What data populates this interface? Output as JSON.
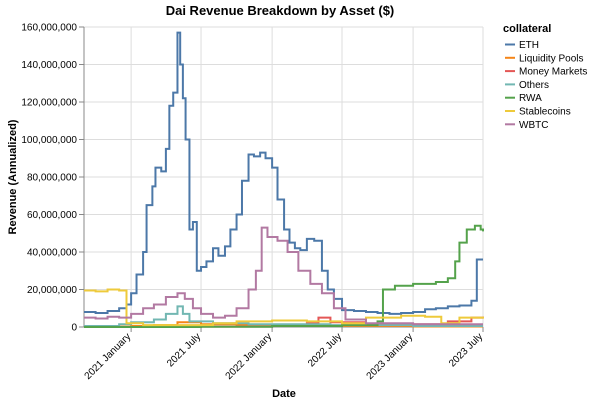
{
  "chart_data": {
    "type": "line",
    "title": "Dai Revenue Breakdown by Asset ($)",
    "xlabel": "Date",
    "ylabel": "Revenue (Annualized)",
    "ylim": [
      0,
      160000000
    ],
    "xlim": [
      "2020-09-01",
      "2023-07-01"
    ],
    "grid": true,
    "interpolation": "step",
    "legend": {
      "title": "collateral",
      "placement": "right"
    },
    "x_ticks": [
      {
        "date": "2021-01-01",
        "label": "2021 January"
      },
      {
        "date": "2021-07-01",
        "label": "2021 July"
      },
      {
        "date": "2022-01-01",
        "label": "2022 January"
      },
      {
        "date": "2022-07-01",
        "label": "2022 July"
      },
      {
        "date": "2023-01-01",
        "label": "2023 January"
      },
      {
        "date": "2023-07-01",
        "label": "2023 July"
      }
    ],
    "y_ticks": [
      {
        "value": 0,
        "label": "0"
      },
      {
        "value": 20000000,
        "label": "20,000,000"
      },
      {
        "value": 40000000,
        "label": "40,000,000"
      },
      {
        "value": 60000000,
        "label": "60,000,000"
      },
      {
        "value": 80000000,
        "label": "80,000,000"
      },
      {
        "value": 100000000,
        "label": "100,000,000"
      },
      {
        "value": 120000000,
        "label": "120,000,000"
      },
      {
        "value": 140000000,
        "label": "140,000,000"
      },
      {
        "value": 160000000,
        "label": "160,000,000"
      }
    ],
    "series": [
      {
        "name": "ETH",
        "color": "#4c78a8",
        "points": [
          [
            "2020-09-01",
            8000000
          ],
          [
            "2020-10-01",
            7500000
          ],
          [
            "2020-11-01",
            8500000
          ],
          [
            "2020-12-01",
            10000000
          ],
          [
            "2020-12-20",
            12000000
          ],
          [
            "2021-01-01",
            18000000
          ],
          [
            "2021-01-15",
            28000000
          ],
          [
            "2021-02-01",
            40000000
          ],
          [
            "2021-02-10",
            65000000
          ],
          [
            "2021-02-25",
            75000000
          ],
          [
            "2021-03-05",
            85000000
          ],
          [
            "2021-03-20",
            83000000
          ],
          [
            "2021-04-01",
            95000000
          ],
          [
            "2021-04-10",
            118000000
          ],
          [
            "2021-04-20",
            125000000
          ],
          [
            "2021-05-01",
            157000000
          ],
          [
            "2021-05-08",
            140000000
          ],
          [
            "2021-05-15",
            122000000
          ],
          [
            "2021-05-22",
            100000000
          ],
          [
            "2021-06-01",
            52000000
          ],
          [
            "2021-06-10",
            56000000
          ],
          [
            "2021-06-20",
            30000000
          ],
          [
            "2021-07-01",
            32000000
          ],
          [
            "2021-07-15",
            35000000
          ],
          [
            "2021-08-01",
            42000000
          ],
          [
            "2021-08-15",
            38000000
          ],
          [
            "2021-09-01",
            43000000
          ],
          [
            "2021-09-15",
            52000000
          ],
          [
            "2021-10-01",
            60000000
          ],
          [
            "2021-10-15",
            78000000
          ],
          [
            "2021-11-01",
            92000000
          ],
          [
            "2021-11-15",
            91000000
          ],
          [
            "2021-12-01",
            93000000
          ],
          [
            "2021-12-15",
            90000000
          ],
          [
            "2022-01-01",
            85000000
          ],
          [
            "2022-01-15",
            68000000
          ],
          [
            "2022-02-01",
            52000000
          ],
          [
            "2022-02-15",
            45000000
          ],
          [
            "2022-03-01",
            42000000
          ],
          [
            "2022-03-15",
            41000000
          ],
          [
            "2022-04-01",
            47000000
          ],
          [
            "2022-04-20",
            46000000
          ],
          [
            "2022-05-10",
            30000000
          ],
          [
            "2022-05-25",
            20000000
          ],
          [
            "2022-06-10",
            15000000
          ],
          [
            "2022-07-01",
            9000000
          ],
          [
            "2022-08-01",
            8500000
          ],
          [
            "2022-09-01",
            8000000
          ],
          [
            "2022-10-01",
            7500000
          ],
          [
            "2022-11-01",
            7000000
          ],
          [
            "2022-12-01",
            7500000
          ],
          [
            "2023-01-01",
            8000000
          ],
          [
            "2023-02-01",
            9500000
          ],
          [
            "2023-03-01",
            10000000
          ],
          [
            "2023-04-01",
            11000000
          ],
          [
            "2023-05-01",
            11500000
          ],
          [
            "2023-06-01",
            14000000
          ],
          [
            "2023-06-15",
            36000000
          ],
          [
            "2023-07-01",
            36000000
          ]
        ]
      },
      {
        "name": "Liquidity Pools",
        "color": "#f58518",
        "points": [
          [
            "2020-09-01",
            200000
          ],
          [
            "2021-01-01",
            500000
          ],
          [
            "2021-03-01",
            1000000
          ],
          [
            "2021-05-01",
            2500000
          ],
          [
            "2021-07-01",
            1500000
          ],
          [
            "2021-10-01",
            1200000
          ],
          [
            "2022-01-01",
            1000000
          ],
          [
            "2022-04-01",
            800000
          ],
          [
            "2022-07-01",
            500000
          ],
          [
            "2023-01-01",
            300000
          ],
          [
            "2023-07-01",
            300000
          ]
        ]
      },
      {
        "name": "Money Markets",
        "color": "#e45756",
        "points": [
          [
            "2020-09-01",
            0
          ],
          [
            "2021-07-01",
            200000
          ],
          [
            "2022-01-01",
            1000000
          ],
          [
            "2022-04-01",
            2000000
          ],
          [
            "2022-05-01",
            5000000
          ],
          [
            "2022-06-01",
            2500000
          ],
          [
            "2022-09-01",
            1500000
          ],
          [
            "2023-01-01",
            1500000
          ],
          [
            "2023-04-01",
            3000000
          ],
          [
            "2023-06-01",
            5000000
          ],
          [
            "2023-07-01",
            4500000
          ]
        ]
      },
      {
        "name": "Others",
        "color": "#72b7b2",
        "points": [
          [
            "2020-09-01",
            500000
          ],
          [
            "2020-12-01",
            1500000
          ],
          [
            "2021-01-01",
            2500000
          ],
          [
            "2021-03-01",
            4000000
          ],
          [
            "2021-04-01",
            7000000
          ],
          [
            "2021-05-01",
            11000000
          ],
          [
            "2021-05-15",
            7000000
          ],
          [
            "2021-06-01",
            3000000
          ],
          [
            "2021-08-01",
            2000000
          ],
          [
            "2021-11-01",
            1500000
          ],
          [
            "2022-02-01",
            1500000
          ],
          [
            "2022-06-01",
            1000000
          ],
          [
            "2023-01-01",
            500000
          ],
          [
            "2023-07-01",
            500000
          ]
        ]
      },
      {
        "name": "RWA",
        "color": "#54a24b",
        "points": [
          [
            "2020-09-01",
            0
          ],
          [
            "2021-07-01",
            100000
          ],
          [
            "2022-01-01",
            500000
          ],
          [
            "2022-07-01",
            1000000
          ],
          [
            "2022-10-01",
            3000000
          ],
          [
            "2022-10-15",
            20000000
          ],
          [
            "2022-11-15",
            22000000
          ],
          [
            "2023-01-01",
            23000000
          ],
          [
            "2023-03-01",
            24000000
          ],
          [
            "2023-04-01",
            26000000
          ],
          [
            "2023-04-20",
            35000000
          ],
          [
            "2023-05-01",
            45000000
          ],
          [
            "2023-05-20",
            52000000
          ],
          [
            "2023-06-10",
            54000000
          ],
          [
            "2023-06-25",
            52000000
          ],
          [
            "2023-07-01",
            51000000
          ]
        ]
      },
      {
        "name": "Stablecoins",
        "color": "#eeca3b",
        "points": [
          [
            "2020-09-01",
            19500000
          ],
          [
            "2020-10-01",
            19000000
          ],
          [
            "2020-11-01",
            20000000
          ],
          [
            "2020-12-01",
            19500000
          ],
          [
            "2020-12-20",
            2000000
          ],
          [
            "2021-02-01",
            1000000
          ],
          [
            "2021-05-01",
            1000000
          ],
          [
            "2021-08-01",
            2000000
          ],
          [
            "2021-10-01",
            3000000
          ],
          [
            "2022-01-01",
            3500000
          ],
          [
            "2022-04-01",
            3000000
          ],
          [
            "2022-07-01",
            2000000
          ],
          [
            "2022-09-01",
            5000000
          ],
          [
            "2022-12-01",
            6000000
          ],
          [
            "2023-02-01",
            5500000
          ],
          [
            "2023-03-15",
            2000000
          ],
          [
            "2023-05-01",
            5000000
          ],
          [
            "2023-07-01",
            5500000
          ]
        ]
      },
      {
        "name": "WBTC",
        "color": "#b279a2",
        "points": [
          [
            "2020-09-01",
            5000000
          ],
          [
            "2020-10-01",
            4500000
          ],
          [
            "2020-11-01",
            5500000
          ],
          [
            "2020-12-01",
            5000000
          ],
          [
            "2021-01-01",
            7000000
          ],
          [
            "2021-02-01",
            10000000
          ],
          [
            "2021-03-01",
            12000000
          ],
          [
            "2021-04-01",
            16000000
          ],
          [
            "2021-05-01",
            18000000
          ],
          [
            "2021-05-20",
            15000000
          ],
          [
            "2021-06-10",
            10000000
          ],
          [
            "2021-07-01",
            7000000
          ],
          [
            "2021-08-01",
            5000000
          ],
          [
            "2021-09-01",
            6000000
          ],
          [
            "2021-10-01",
            10000000
          ],
          [
            "2021-11-01",
            20000000
          ],
          [
            "2021-11-20",
            30000000
          ],
          [
            "2021-12-05",
            53000000
          ],
          [
            "2021-12-20",
            48000000
          ],
          [
            "2022-01-15",
            46000000
          ],
          [
            "2022-02-10",
            40000000
          ],
          [
            "2022-03-10",
            30000000
          ],
          [
            "2022-04-10",
            23000000
          ],
          [
            "2022-05-10",
            18000000
          ],
          [
            "2022-06-10",
            10000000
          ],
          [
            "2022-07-10",
            4000000
          ],
          [
            "2022-09-01",
            2000000
          ],
          [
            "2023-01-01",
            1500000
          ],
          [
            "2023-07-01",
            1500000
          ]
        ]
      }
    ]
  }
}
